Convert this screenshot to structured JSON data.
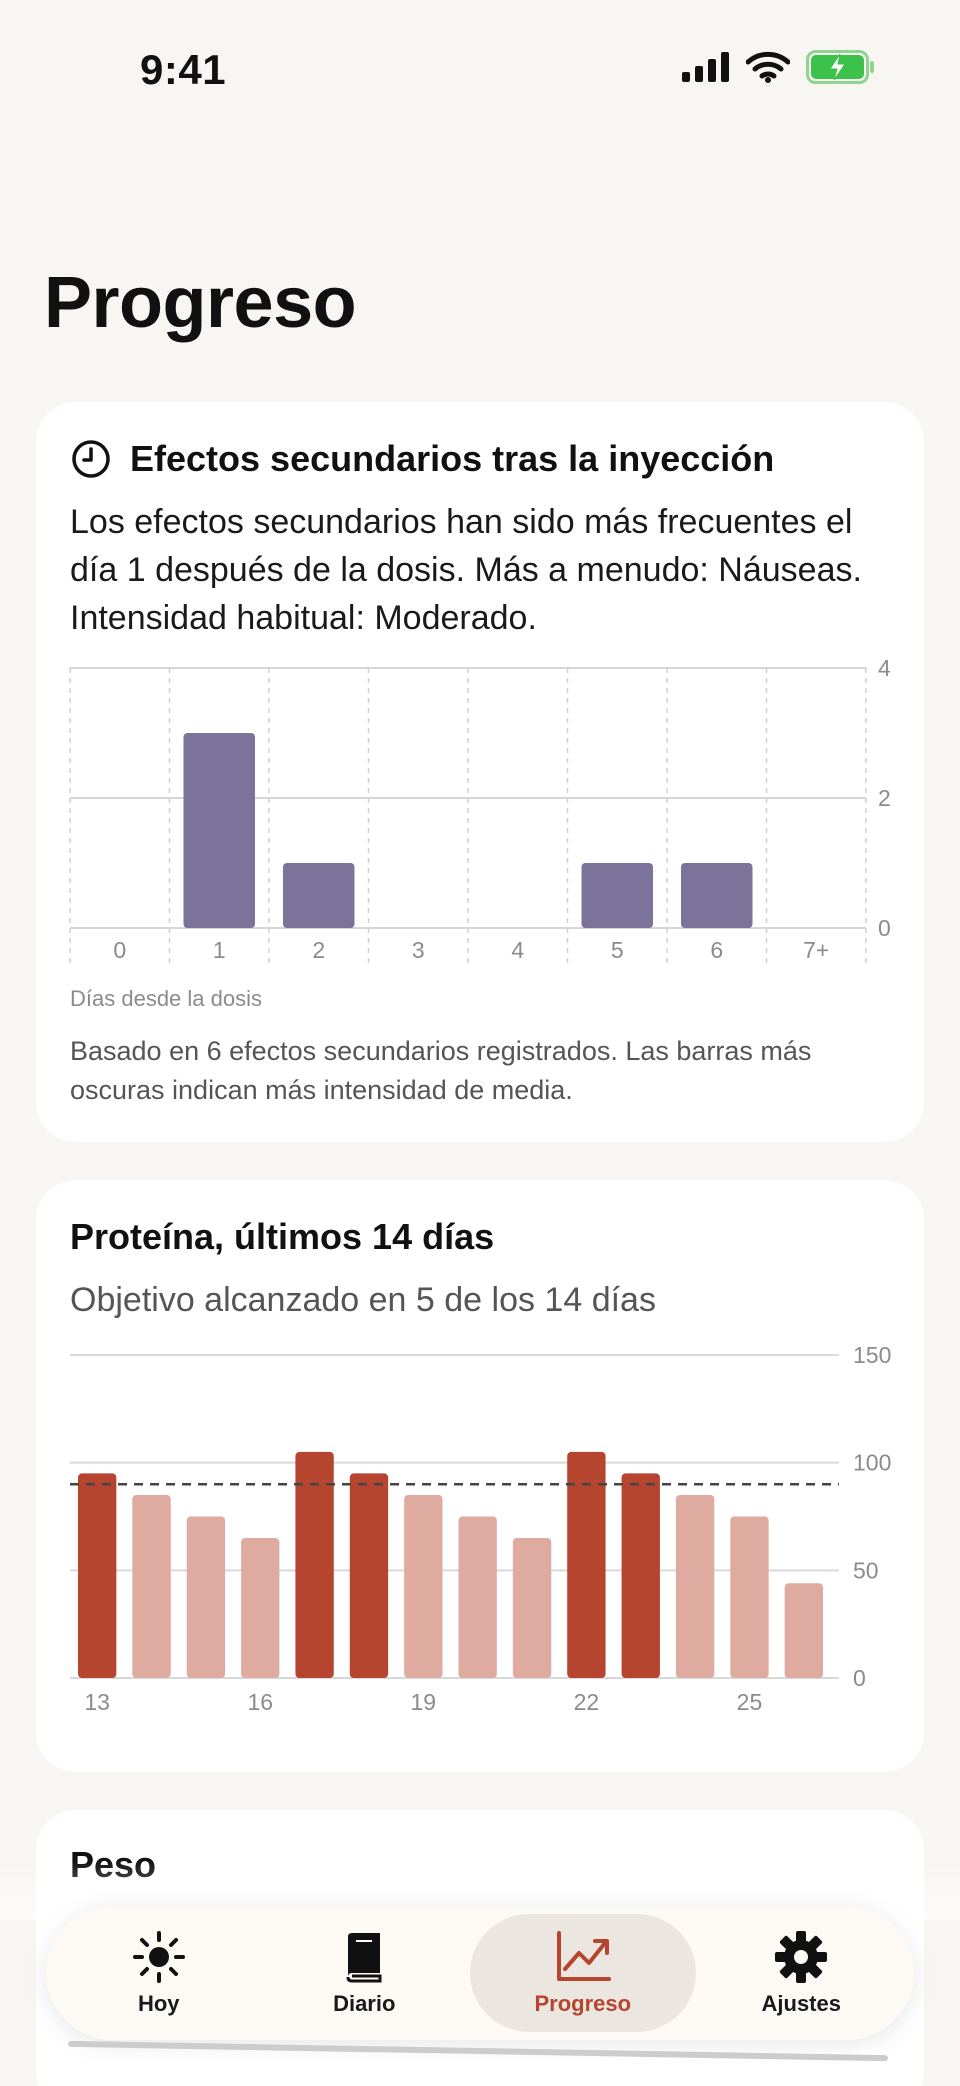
{
  "status": {
    "time": "9:41"
  },
  "page": {
    "title": "Progreso"
  },
  "side_effects": {
    "title": "Efectos secundarios tras la inyección",
    "summary": "Los efectos secundarios han sido más frecuentes el día 1 después de la dosis. Más a menudo: Náuseas. Intensidad habitual: Moderado.",
    "axis_caption": "Días desde la dosis",
    "footnote": "Basado en 6 efectos secundarios registrados. Las barras más oscuras indican más intensidad de media.",
    "bar_color": "#7b7399"
  },
  "protein": {
    "title": "Proteína, últimos 14 días",
    "summary": "Objetivo alcanzado en 5 de los 14 días",
    "met_color": "#b5452f",
    "unmet_color": "#dfaba0"
  },
  "weight": {
    "title": "Peso"
  },
  "tabs": [
    {
      "label": "Hoy",
      "icon": "sun-icon"
    },
    {
      "label": "Diario",
      "icon": "book-icon"
    },
    {
      "label": "Progreso",
      "icon": "chart-icon"
    },
    {
      "label": "Ajustes",
      "icon": "gear-icon"
    }
  ],
  "chart_data": [
    {
      "type": "bar",
      "categories": [
        "0",
        "1",
        "2",
        "3",
        "4",
        "5",
        "6",
        "7+"
      ],
      "values": [
        0,
        3,
        1,
        0,
        0,
        1,
        1,
        0
      ],
      "xlabel": "Días desde la dosis",
      "ylabel": "",
      "ylim": [
        0,
        4
      ],
      "yticks": [
        0,
        2,
        4
      ],
      "grid": true
    },
    {
      "type": "bar",
      "categories": [
        "13",
        "14",
        "15",
        "16",
        "17",
        "18",
        "19",
        "20",
        "21",
        "22",
        "23",
        "24",
        "25",
        "26"
      ],
      "x_tick_labels": [
        "13",
        "16",
        "19",
        "22",
        "25"
      ],
      "values": [
        95,
        85,
        75,
        65,
        105,
        95,
        85,
        75,
        65,
        105,
        95,
        85,
        75,
        44
      ],
      "goal_met": [
        true,
        false,
        false,
        false,
        true,
        true,
        false,
        false,
        false,
        true,
        true,
        false,
        false,
        false
      ],
      "goal": 90,
      "ylim": [
        0,
        150
      ],
      "yticks": [
        0,
        50,
        100,
        150
      ],
      "grid": true
    }
  ]
}
